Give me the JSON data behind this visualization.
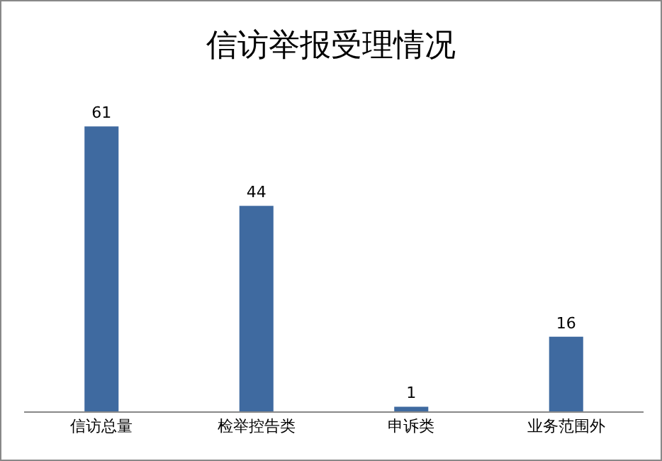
{
  "chart_data": {
    "type": "bar",
    "title": "信访举报受理情况",
    "categories": [
      "信访总量",
      "检举控告类",
      "申诉类",
      "业务范围外"
    ],
    "values": [
      61,
      44,
      1,
      16
    ],
    "color": "#3f6aa0",
    "data_labels": true,
    "tick_labels": "x"
  }
}
